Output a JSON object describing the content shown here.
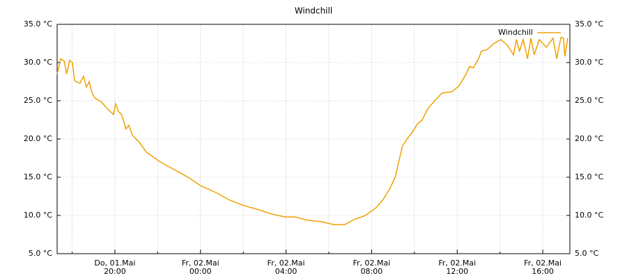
{
  "chart_data": {
    "type": "line",
    "title": "Windchill",
    "x": [
      "01.05 17:18",
      "01.05 17:28",
      "01.05 17:38",
      "01.05 17:45",
      "01.05 17:53",
      "01.05 18:01",
      "01.05 18:07",
      "01.05 18:22",
      "01.05 18:32",
      "01.05 18:40",
      "01.05 18:48",
      "01.05 18:56",
      "01.05 19:05",
      "01.05 19:21",
      "01.05 19:40",
      "01.05 19:56",
      "01.05 20:02",
      "01.05 20:10",
      "01.05 20:19",
      "01.05 20:31",
      "01.05 20:39",
      "01.05 20:49",
      "01.05 21:08",
      "01.05 21:28",
      "01.05 22:07",
      "01.05 22:46",
      "01.05 23:25",
      "02.05 00:00",
      "02.05 00:43",
      "02.05 01:22",
      "02.05 02:01",
      "02.05 02:40",
      "02.05 03:19",
      "02.05 03:58",
      "02.05 04:27",
      "02.05 04:57",
      "02.05 05:36",
      "02.05 06:15",
      "02.05 06:44",
      "02.05 07:13",
      "02.05 07:43",
      "02.05 08:12",
      "02.05 08:31",
      "02.05 08:51",
      "02.05 09:06",
      "02.05 09:16",
      "02.05 09:26",
      "02.05 09:39",
      "02.05 09:53",
      "02.05 10:09",
      "02.05 10:22",
      "02.05 10:38",
      "02.05 10:57",
      "02.05 11:17",
      "02.05 11:46",
      "02.05 12:06",
      "02.05 12:25",
      "02.05 12:35",
      "02.05 12:45",
      "02.05 13:00",
      "02.05 13:08",
      "02.05 13:24",
      "02.05 13:43",
      "02.05 14:03",
      "02.05 14:22",
      "02.05 14:38",
      "02.05 14:46",
      "02.05 14:55",
      "02.05 15:05",
      "02.05 15:17",
      "02.05 15:27",
      "02.05 15:36",
      "02.05 15:50",
      "02.05 16:10",
      "02.05 16:29",
      "02.05 16:39",
      "02.05 16:51",
      "02.05 16:58",
      "02.05 17:02",
      "02.05 17:10"
    ],
    "series": [
      {
        "name": "Windchill",
        "color": "#f0a000",
        "values": [
          28.5,
          30.5,
          30.2,
          28.5,
          30.3,
          30.0,
          27.6,
          27.3,
          28.2,
          26.8,
          27.5,
          26.0,
          25.3,
          24.9,
          23.9,
          23.2,
          24.6,
          23.6,
          23.2,
          21.3,
          21.8,
          20.5,
          19.6,
          18.3,
          17.0,
          16.0,
          15.0,
          13.9,
          13.0,
          12.0,
          11.3,
          10.8,
          10.2,
          9.8,
          9.8,
          9.4,
          9.2,
          8.8,
          8.8,
          9.5,
          10.0,
          11.0,
          12.0,
          13.5,
          15.0,
          17.0,
          19.0,
          20.0,
          20.8,
          22.0,
          22.5,
          24.0,
          25.0,
          26.0,
          26.2,
          27.0,
          28.5,
          29.5,
          29.3,
          30.5,
          31.5,
          31.7,
          32.5,
          33.0,
          32.2,
          31.0,
          33.0,
          31.5,
          33.0,
          30.5,
          33.2,
          31.0,
          33.0,
          32.0,
          33.2,
          30.5,
          33.3,
          33.2,
          30.8,
          33.2
        ]
      }
    ],
    "xlim": [
      "01.05 17:18",
      "02.05 17:16"
    ],
    "xticks": [
      {
        "value": "01.05 20:00",
        "label": [
          "Do, 01.Mai",
          "20:00"
        ]
      },
      {
        "value": "02.05 00:00",
        "label": [
          "Fr, 02.Mai",
          "00:00"
        ]
      },
      {
        "value": "02.05 04:00",
        "label": [
          "Fr, 02.Mai",
          "04:00"
        ]
      },
      {
        "value": "02.05 08:00",
        "label": [
          "Fr, 02.Mai",
          "08:00"
        ]
      },
      {
        "value": "02.05 12:00",
        "label": [
          "Fr, 02.Mai",
          "12:00"
        ]
      },
      {
        "value": "02.05 16:00",
        "label": [
          "Fr, 02.Mai",
          "16:00"
        ]
      }
    ],
    "xminor_grid": [
      "01.05 18:00",
      "01.05 22:00",
      "02.05 02:00",
      "02.05 06:00",
      "02.05 10:00",
      "02.05 14:00"
    ],
    "ylim": [
      5,
      35
    ],
    "yticks": [
      {
        "value": 5,
        "label": "5.0 °C"
      },
      {
        "value": 10,
        "label": "10.0 °C"
      },
      {
        "value": 15,
        "label": "15.0 °C"
      },
      {
        "value": 20,
        "label": "20.0 °C"
      },
      {
        "value": 25,
        "label": "25.0 °C"
      },
      {
        "value": 30,
        "label": "30.0 °C"
      },
      {
        "value": 35,
        "label": "35.0 °C"
      }
    ],
    "grid": true,
    "legend": "top-right"
  }
}
